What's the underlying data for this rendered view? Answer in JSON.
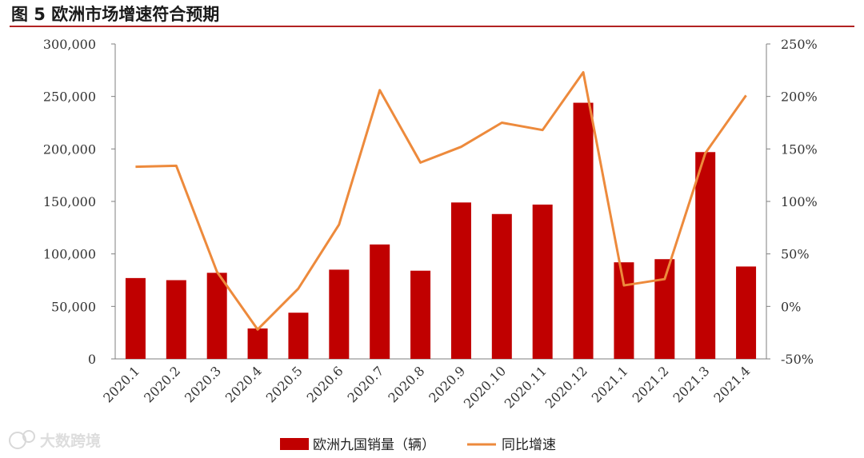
{
  "figure": {
    "title": "图  5 欧洲市场增速符合预期",
    "watermark": "大数跨境"
  },
  "chart_data": {
    "type": "bar",
    "categories": [
      "2020.1",
      "2020.2",
      "2020.3",
      "2020.4",
      "2020.5",
      "2020.6",
      "2020.7",
      "2020.8",
      "2020.9",
      "2020.10",
      "2020.11",
      "2020.12",
      "2021.1",
      "2021.2",
      "2021.3",
      "2021.4"
    ],
    "series": [
      {
        "name": "欧洲九国销量（辆）",
        "type": "bar",
        "axis": "left",
        "color": "#c00000",
        "values": [
          77000,
          75000,
          82000,
          29000,
          44000,
          85000,
          109000,
          84000,
          149000,
          138000,
          147000,
          244000,
          92000,
          95000,
          197000,
          88000
        ]
      },
      {
        "name": "同比增速",
        "type": "line",
        "axis": "right",
        "color": "#ed8a3c",
        "values": [
          133,
          134,
          33,
          -22,
          17,
          78,
          206,
          137,
          152,
          175,
          168,
          223,
          20,
          26,
          146,
          201
        ]
      }
    ],
    "left_axis": {
      "min": 0,
      "max": 300000,
      "ticks": [
        "0",
        "50,000",
        "100,000",
        "150,000",
        "200,000",
        "250,000",
        "300,000"
      ]
    },
    "right_axis": {
      "min": -50,
      "max": 250,
      "unit": "%",
      "ticks": [
        "-50%",
        "0%",
        "50%",
        "100%",
        "150%",
        "200%",
        "250%"
      ]
    },
    "legend_position": "bottom",
    "grid": false
  }
}
